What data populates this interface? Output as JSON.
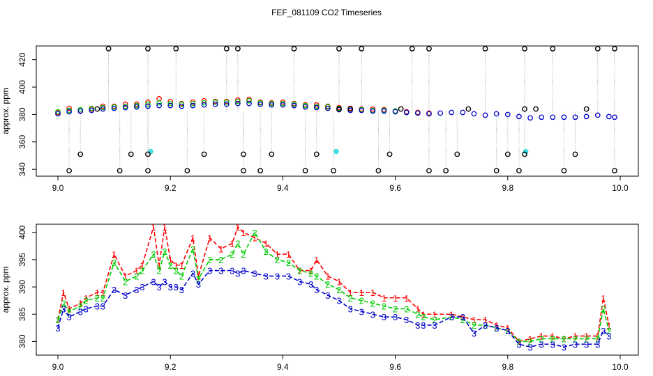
{
  "figure": {
    "title": "FEF_081109  CO2 Timeseries"
  },
  "chart_data": [
    {
      "type": "scatter",
      "title": "",
      "xlabel": "",
      "ylabel": "approx. ppm",
      "xlim": [
        9.0,
        10.0
      ],
      "ylim": [
        335,
        430
      ],
      "xticks": [
        9.0,
        9.2,
        9.4,
        9.6,
        9.8,
        10.0
      ],
      "xtick_labels": [
        "9.0",
        "9.2",
        "9.4",
        "9.6",
        "9.8",
        "10.0"
      ],
      "yticks": [
        340,
        360,
        380,
        400,
        420
      ],
      "ytick_labels": [
        "340",
        "360",
        "380",
        "400",
        "420"
      ],
      "grid": false,
      "series": [
        {
          "name": "1",
          "color": "#ff0000",
          "x": [
            9.0,
            9.02,
            9.04,
            9.06,
            9.08,
            9.1,
            9.12,
            9.14,
            9.16,
            9.18,
            9.2,
            9.22,
            9.24,
            9.26,
            9.28,
            9.3,
            9.32,
            9.34,
            9.36,
            9.38,
            9.4,
            9.42,
            9.44,
            9.46,
            9.48,
            9.5,
            9.52,
            9.54,
            9.56,
            9.58,
            9.6,
            9.62,
            9.64,
            9.66
          ],
          "y": [
            381.5,
            384.5,
            382.5,
            384,
            386,
            386,
            387.5,
            387.5,
            389,
            391.5,
            389.5,
            388,
            389,
            390,
            389.5,
            389.5,
            390.5,
            391,
            389,
            388.5,
            389,
            388,
            387,
            387,
            386,
            385,
            384.5,
            384,
            384,
            383.5,
            382.5,
            382,
            381.5,
            381
          ]
        },
        {
          "name": "2",
          "color": "#00cd00",
          "x": [
            9.0,
            9.02,
            9.04,
            9.06,
            9.08,
            9.1,
            9.12,
            9.14,
            9.16,
            9.18,
            9.2,
            9.22,
            9.24,
            9.26,
            9.28,
            9.3,
            9.32,
            9.34,
            9.36,
            9.38,
            9.4,
            9.42,
            9.44,
            9.46,
            9.48,
            9.5,
            9.52,
            9.54,
            9.56,
            9.58,
            9.6,
            9.62,
            9.64,
            9.66
          ],
          "y": [
            382,
            383,
            383.5,
            384.5,
            385,
            385.5,
            386,
            386.5,
            387.5,
            388.5,
            388,
            387.5,
            388,
            388.5,
            389,
            389,
            389.5,
            390,
            388.5,
            388,
            388,
            387.5,
            386.5,
            386,
            385.5,
            384.5,
            384,
            383.5,
            383,
            383,
            382.5,
            381.5,
            381,
            380.5
          ]
        },
        {
          "name": "3",
          "color": "#0000cd",
          "x": [
            9.0,
            9.02,
            9.04,
            9.06,
            9.08,
            9.1,
            9.12,
            9.14,
            9.16,
            9.18,
            9.2,
            9.22,
            9.24,
            9.26,
            9.28,
            9.3,
            9.32,
            9.34,
            9.36,
            9.38,
            9.4,
            9.42,
            9.44,
            9.46,
            9.48,
            9.5,
            9.52,
            9.54,
            9.56,
            9.58,
            9.6,
            9.62,
            9.64,
            9.66,
            9.68,
            9.7,
            9.72,
            9.74,
            9.76,
            9.78,
            9.8,
            9.82,
            9.84,
            9.86,
            9.88,
            9.9,
            9.92,
            9.94,
            9.96,
            9.98,
            9.99
          ],
          "y": [
            380.5,
            382,
            382.5,
            383,
            384,
            384.5,
            385,
            385.5,
            386,
            386.5,
            386.5,
            386,
            386.5,
            387,
            387.5,
            387.5,
            388,
            388,
            387.5,
            387,
            387,
            386.5,
            385.5,
            385,
            384.5,
            383.5,
            383,
            383,
            382.5,
            382.5,
            382,
            381.5,
            381,
            380.5,
            381,
            381.5,
            381.5,
            380.5,
            379.5,
            380.5,
            380,
            378.5,
            377.5,
            378,
            378,
            378,
            378,
            378.5,
            379.5,
            378.5,
            378
          ]
        },
        {
          "name": "outliers",
          "color": "#000000",
          "x": [
            9.09,
            9.16,
            9.21,
            9.3,
            9.32,
            9.42,
            9.5,
            9.54,
            9.63,
            9.66,
            9.76,
            9.83,
            9.88,
            9.96,
            9.99,
            9.02,
            9.11,
            9.16,
            9.23,
            9.33,
            9.36,
            9.44,
            9.49,
            9.57,
            9.66,
            9.69,
            9.78,
            9.82,
            9.9,
            9.99,
            9.04,
            9.13,
            9.16,
            9.26,
            9.33,
            9.38,
            9.46,
            9.59,
            9.71,
            9.8,
            9.83,
            9.92,
            9.07,
            9.5,
            9.52,
            9.61,
            9.73,
            9.83,
            9.85,
            9.94
          ],
          "y": [
            428,
            428,
            428,
            428,
            428,
            428,
            428,
            428,
            428,
            428,
            428,
            428,
            428,
            428,
            428,
            339,
            339,
            339,
            339,
            339,
            339,
            339,
            339,
            339,
            339,
            339,
            339,
            339,
            339,
            339,
            351,
            351,
            351,
            351,
            351,
            351,
            351,
            351,
            351,
            351,
            351,
            351,
            384,
            384,
            384,
            384,
            384,
            384,
            384,
            384
          ]
        },
        {
          "name": "cyan",
          "color": "#44dddd",
          "x": [
            9.165,
            9.495,
            9.832
          ],
          "y": [
            353,
            353,
            353
          ]
        }
      ]
    },
    {
      "type": "line",
      "title": "",
      "xlabel": "",
      "ylabel": "approx. ppm",
      "xlim": [
        9.0,
        10.0
      ],
      "ylim": [
        377.5,
        401.5
      ],
      "xticks": [
        9.0,
        9.2,
        9.4,
        9.6,
        9.8,
        10.0
      ],
      "xtick_labels": [
        "9.0",
        "9.2",
        "9.4",
        "9.6",
        "9.8",
        "10.0"
      ],
      "yticks": [
        380,
        385,
        390,
        395,
        400
      ],
      "ytick_labels": [
        "380",
        "385",
        "390",
        "395",
        "400"
      ],
      "grid": false,
      "series": [
        {
          "name": "1",
          "color": "#ff0000",
          "x": [
            9.0,
            9.01,
            9.02,
            9.04,
            9.05,
            9.07,
            9.08,
            9.1,
            9.12,
            9.14,
            9.15,
            9.17,
            9.18,
            9.19,
            9.2,
            9.21,
            9.22,
            9.24,
            9.25,
            9.27,
            9.29,
            9.31,
            9.32,
            9.33,
            9.35,
            9.37,
            9.39,
            9.41,
            9.43,
            9.45,
            9.46,
            9.48,
            9.5,
            9.52,
            9.54,
            9.56,
            9.58,
            9.6,
            9.62,
            9.64,
            9.65,
            9.67,
            9.7,
            9.72,
            9.74,
            9.76,
            9.78,
            9.8,
            9.82,
            9.84,
            9.86,
            9.88,
            9.9,
            9.92,
            9.94,
            9.96,
            9.97,
            9.98
          ],
          "y": [
            384,
            389,
            386,
            387,
            388,
            389,
            389,
            396,
            392,
            393,
            394,
            401,
            394,
            401,
            395,
            394,
            394,
            399,
            392,
            399,
            397,
            398,
            401,
            400,
            399,
            398,
            396,
            396,
            393,
            393,
            395,
            392,
            391,
            389,
            389,
            389,
            388,
            388,
            388,
            386,
            385,
            385,
            385,
            384.5,
            384,
            384,
            383,
            382.5,
            380,
            380.5,
            381,
            381,
            380.5,
            381,
            381,
            381,
            388,
            383
          ]
        },
        {
          "name": "2",
          "color": "#00cd00",
          "x": [
            9.0,
            9.01,
            9.02,
            9.04,
            9.05,
            9.07,
            9.08,
            9.1,
            9.12,
            9.14,
            9.15,
            9.17,
            9.18,
            9.19,
            9.2,
            9.21,
            9.22,
            9.24,
            9.25,
            9.27,
            9.29,
            9.31,
            9.32,
            9.33,
            9.35,
            9.37,
            9.39,
            9.41,
            9.43,
            9.45,
            9.46,
            9.48,
            9.5,
            9.52,
            9.54,
            9.56,
            9.58,
            9.6,
            9.62,
            9.64,
            9.65,
            9.67,
            9.7,
            9.72,
            9.74,
            9.76,
            9.78,
            9.8,
            9.82,
            9.84,
            9.86,
            9.88,
            9.9,
            9.92,
            9.94,
            9.96,
            9.97,
            9.98
          ],
          "y": [
            384,
            387,
            385.5,
            386.5,
            387.5,
            388,
            388,
            394.5,
            391,
            392,
            393,
            396,
            393,
            396.5,
            394,
            393,
            392,
            397,
            391.5,
            395,
            395,
            396,
            398,
            396,
            400,
            396.5,
            395,
            394.5,
            393,
            392.5,
            392,
            390.5,
            389.5,
            388,
            387.5,
            387,
            386.5,
            386,
            386,
            385,
            384.5,
            384,
            384.5,
            384,
            383,
            383,
            382.5,
            382,
            380,
            380,
            380.5,
            380.5,
            380.5,
            380.5,
            380.5,
            380.5,
            386,
            382
          ]
        },
        {
          "name": "3",
          "color": "#0000cd",
          "x": [
            9.0,
            9.01,
            9.02,
            9.04,
            9.05,
            9.07,
            9.08,
            9.1,
            9.12,
            9.14,
            9.15,
            9.17,
            9.18,
            9.19,
            9.2,
            9.21,
            9.22,
            9.24,
            9.25,
            9.27,
            9.29,
            9.31,
            9.32,
            9.33,
            9.35,
            9.37,
            9.39,
            9.41,
            9.43,
            9.45,
            9.46,
            9.48,
            9.5,
            9.52,
            9.54,
            9.56,
            9.58,
            9.6,
            9.62,
            9.64,
            9.65,
            9.67,
            9.7,
            9.72,
            9.74,
            9.76,
            9.78,
            9.8,
            9.82,
            9.84,
            9.86,
            9.88,
            9.9,
            9.92,
            9.94,
            9.96,
            9.97,
            9.98
          ],
          "y": [
            382.5,
            386,
            384.5,
            385.5,
            386,
            386.5,
            386.5,
            389.5,
            388.5,
            389.5,
            390,
            391,
            390,
            391,
            390,
            390,
            389.5,
            392.5,
            390.5,
            393,
            393,
            393,
            392.5,
            393,
            392.5,
            392,
            392,
            392,
            391,
            390.5,
            389.5,
            388.5,
            387.5,
            386,
            385.5,
            385,
            384.5,
            384.5,
            384,
            383,
            383,
            383,
            384.5,
            384.5,
            381.5,
            383,
            382.5,
            382,
            379.5,
            379,
            379.5,
            379.5,
            379,
            379.5,
            379.5,
            379.5,
            382,
            381
          ]
        }
      ]
    }
  ]
}
